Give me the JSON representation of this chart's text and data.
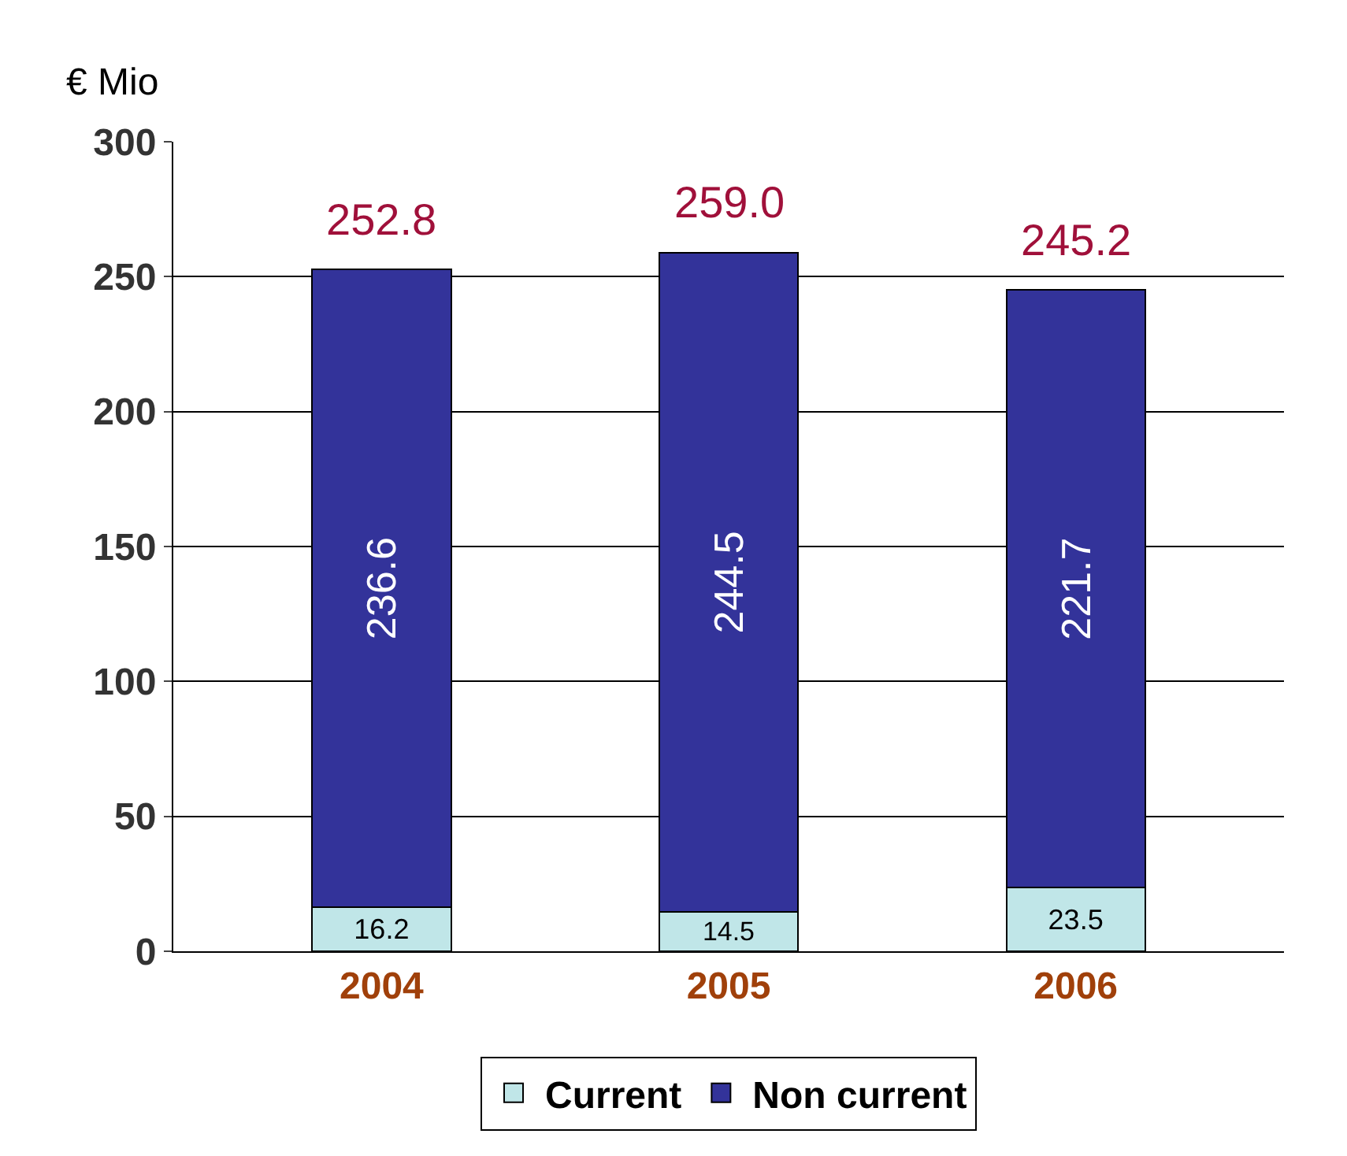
{
  "chart_data": {
    "type": "bar",
    "ylabel": "€ Mio",
    "categories": [
      "2004",
      "2005",
      "2006"
    ],
    "series": [
      {
        "name": "Current",
        "color": "#c0e6e8",
        "values": [
          16.2,
          14.5,
          23.5
        ]
      },
      {
        "name": "Non current",
        "color": "#33339a",
        "values": [
          236.6,
          244.5,
          221.7
        ]
      }
    ],
    "stacked": true,
    "data_labels": true,
    "totals": [
      "252.8",
      "259.0",
      "245.2"
    ],
    "ylim": [
      0,
      300
    ],
    "yticks": [
      0,
      50,
      100,
      150,
      200,
      250,
      300
    ],
    "grid": "y",
    "legend": "bottom"
  }
}
